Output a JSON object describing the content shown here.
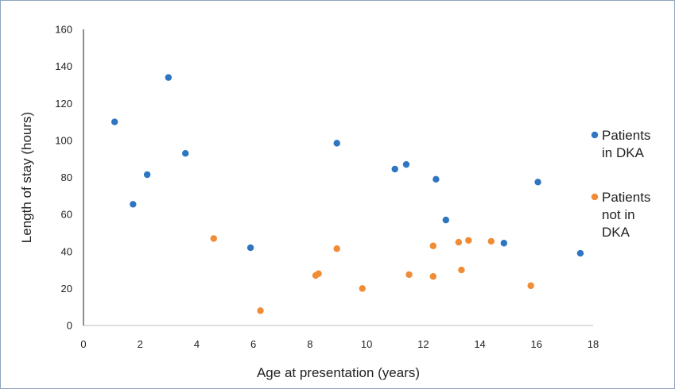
{
  "chart_data": {
    "type": "scatter",
    "xlabel": "Age at presentation (years)",
    "ylabel": "Length of stay (hours)",
    "xlim": [
      0,
      18
    ],
    "ylim": [
      0,
      160
    ],
    "x_ticks": [
      "0",
      "2",
      "4",
      "6",
      "8",
      "10",
      "12",
      "14",
      "16",
      "18"
    ],
    "y_ticks": [
      "0",
      "20",
      "40",
      "60",
      "80",
      "100",
      "120",
      "140",
      "160"
    ],
    "grid": false,
    "legend_position": "right",
    "series": [
      {
        "name": "Patients in DKA",
        "legend_lines": [
          "Patients",
          "in DKA"
        ],
        "color": "#2e75c2",
        "points": [
          [
            1.1,
            110
          ],
          [
            1.75,
            65.5
          ],
          [
            2.25,
            81.5
          ],
          [
            3.0,
            134
          ],
          [
            3.6,
            93
          ],
          [
            5.9,
            42
          ],
          [
            8.95,
            98.5
          ],
          [
            11.0,
            84.5
          ],
          [
            11.4,
            87
          ],
          [
            12.45,
            79
          ],
          [
            12.8,
            57
          ],
          [
            14.85,
            44.5
          ],
          [
            16.05,
            77.5
          ],
          [
            17.55,
            39
          ]
        ]
      },
      {
        "name": "Patients not in DKA",
        "legend_lines": [
          "Patients",
          "not in",
          "DKA"
        ],
        "color": "#f08c35",
        "points": [
          [
            4.6,
            47
          ],
          [
            6.25,
            8
          ],
          [
            8.2,
            27
          ],
          [
            8.3,
            28
          ],
          [
            8.95,
            41.5
          ],
          [
            9.85,
            20
          ],
          [
            11.5,
            27.5
          ],
          [
            12.35,
            43
          ],
          [
            12.35,
            26.5
          ],
          [
            13.25,
            45
          ],
          [
            13.35,
            30
          ],
          [
            13.6,
            46
          ],
          [
            14.4,
            45.5
          ],
          [
            15.8,
            21.5
          ]
        ]
      }
    ]
  }
}
